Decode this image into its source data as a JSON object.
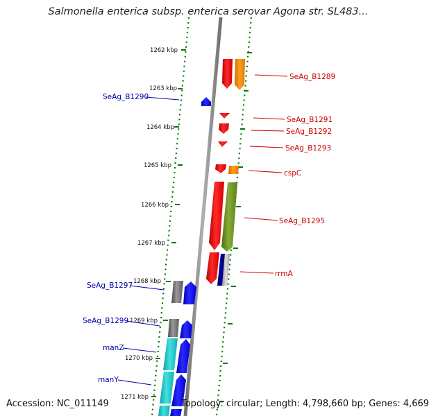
{
  "title": "Salmonella enterica subsp. enterica serovar Agona str. SL483...",
  "footer": {
    "accession": "Accession: NC_011149",
    "info": "Topology: circular; Length: 4,798,660 bp; Genes: 4,669"
  },
  "ticks": [
    "1262 kbp",
    "1263 kbp",
    "1264 kbp",
    "1265 kbp",
    "1266 kbp",
    "1267 kbp",
    "1268 kbp",
    "1269 kbp",
    "1270 kbp",
    "1271 kbp"
  ],
  "gene_labels": {
    "forward": [
      "SeAg_B1289",
      "SeAg_B1291",
      "SeAg_B1292",
      "SeAg_B1293",
      "cspC",
      "SeAg_B1295",
      "rrmA"
    ],
    "reverse": [
      "SeAg_B1290",
      "SeAg_B1297",
      "SeAg_B1299",
      "manZ",
      "manY"
    ]
  },
  "colors": {
    "forward_label": "#cc0000",
    "reverse_label": "#0000aa",
    "red": "#ff0000",
    "orange": "#ff8c00",
    "olive": "#6b8e23",
    "navy": "#000080",
    "blue": "#0000ff",
    "teal": "#20c0c0",
    "gray": "#707070",
    "tick_green": "#007700"
  }
}
